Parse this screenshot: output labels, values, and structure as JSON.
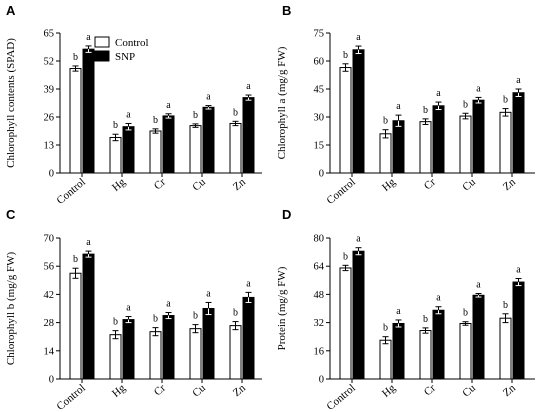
{
  "chart_data": [
    {
      "panel": "A",
      "type": "bar",
      "ylabel": "Chlorophyll contents (SPAD)",
      "categories": [
        "Control",
        "Hg",
        "Cr",
        "Cu",
        "Zn"
      ],
      "yticks": [
        0,
        13,
        26,
        39,
        52,
        65
      ],
      "ylim": [
        0,
        65
      ],
      "legend": [
        "Control",
        "SNP"
      ],
      "series": [
        {
          "name": "Control",
          "color": "#ffffff",
          "values": [
            48.5,
            16.5,
            19.5,
            22,
            23
          ],
          "errors": [
            1.2,
            1.5,
            1.0,
            0.8,
            1.0
          ],
          "sig": [
            "b",
            "b",
            "b",
            "b",
            "b"
          ]
        },
        {
          "name": "SNP",
          "color": "#000000",
          "values": [
            57.5,
            21.5,
            26.5,
            30.5,
            35
          ],
          "errors": [
            1.5,
            1.5,
            1.0,
            0.8,
            1.2
          ],
          "sig": [
            "a",
            "a",
            "a",
            "a",
            "a"
          ]
        }
      ]
    },
    {
      "panel": "B",
      "type": "bar",
      "ylabel": "Chlorophyll a (mg/g FW)",
      "categories": [
        "Control",
        "Hg",
        "Cr",
        "Cu",
        "Zn"
      ],
      "yticks": [
        0,
        15,
        30,
        45,
        60,
        75
      ],
      "ylim": [
        0,
        75
      ],
      "series": [
        {
          "name": "Control",
          "color": "#ffffff",
          "values": [
            56.5,
            21,
            27.5,
            30.5,
            32.5
          ],
          "errors": [
            2.0,
            2.2,
            1.5,
            1.5,
            2.0
          ],
          "sig": [
            "b",
            "b",
            "b",
            "b",
            "b"
          ]
        },
        {
          "name": "SNP",
          "color": "#000000",
          "values": [
            66,
            28,
            36,
            39,
            43
          ],
          "errors": [
            2.0,
            3.0,
            2.0,
            1.5,
            2.0
          ],
          "sig": [
            "a",
            "a",
            "a",
            "a",
            "a"
          ]
        }
      ]
    },
    {
      "panel": "C",
      "type": "bar",
      "ylabel": "Chlorophyll b (mg/g FW)",
      "categories": [
        "Control",
        "Hg",
        "Cr",
        "Cu",
        "Zn"
      ],
      "yticks": [
        0,
        14,
        28,
        42,
        56,
        70
      ],
      "ylim": [
        0,
        70
      ],
      "series": [
        {
          "name": "Control",
          "color": "#ffffff",
          "values": [
            52.5,
            22,
            23.5,
            25,
            26.5
          ],
          "errors": [
            2.5,
            2.0,
            2.0,
            2.0,
            2.0
          ],
          "sig": [
            "b",
            "b",
            "b",
            "b",
            "b"
          ]
        },
        {
          "name": "SNP",
          "color": "#000000",
          "values": [
            62,
            29.5,
            31.5,
            35,
            40.5
          ],
          "errors": [
            1.5,
            1.5,
            1.5,
            3.0,
            2.5
          ],
          "sig": [
            "a",
            "a",
            "a",
            "a",
            "a"
          ]
        }
      ]
    },
    {
      "panel": "D",
      "type": "bar",
      "ylabel": "Protein (mg/g FW)",
      "categories": [
        "Control",
        "Hg",
        "Cr",
        "Cu",
        "Zn"
      ],
      "yticks": [
        0,
        16,
        32,
        48,
        64,
        80
      ],
      "ylim": [
        0,
        80
      ],
      "series": [
        {
          "name": "Control",
          "color": "#ffffff",
          "values": [
            63,
            22,
            27.5,
            31.5,
            34.5
          ],
          "errors": [
            1.5,
            2.0,
            1.5,
            1.0,
            2.5
          ],
          "sig": [
            "b",
            "b",
            "b",
            "b",
            "b"
          ]
        },
        {
          "name": "SNP",
          "color": "#000000",
          "values": [
            72.5,
            31.5,
            39,
            47.5,
            55
          ],
          "errors": [
            2.0,
            2.0,
            2.0,
            1.0,
            2.0
          ],
          "sig": [
            "a",
            "a",
            "a",
            "a",
            "a"
          ]
        }
      ]
    }
  ]
}
